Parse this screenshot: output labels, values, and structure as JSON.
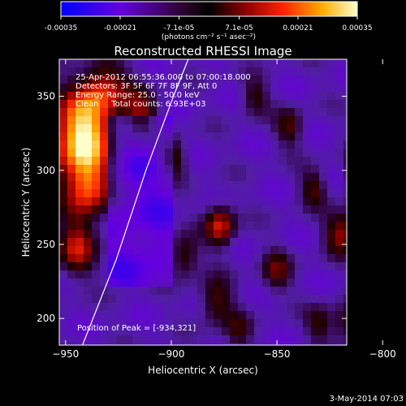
{
  "colorbar": {
    "ticks": [
      "-0.00035",
      "-0.00021",
      "-7.1e-05",
      "7.1e-05",
      "0.00021",
      "0.00035"
    ],
    "tick_values": [
      -0.00035,
      -0.00021,
      -7.1e-05,
      7.1e-05,
      0.00021,
      0.00035
    ],
    "range": [
      -0.00035,
      0.00035
    ],
    "unit_label": "(photons cm⁻² s⁻¹ asec⁻²)",
    "colors": [
      "#0000ff",
      "#5500cc",
      "#330033",
      "#000000",
      "#880000",
      "#ff3300",
      "#ff9900",
      "#ffffcc"
    ]
  },
  "chart_data": {
    "type": "heatmap",
    "title": "Reconstructed RHESSI Image",
    "xlabel": "Heliocentric X (arcsec)",
    "ylabel": "Heliocentric Y (arcsec)",
    "xlim": [
      -953,
      -817
    ],
    "ylim": [
      182,
      375
    ],
    "xticks": [
      -950,
      -900,
      -850,
      -800
    ],
    "yticks": [
      200,
      250,
      300,
      350
    ],
    "annotations": [
      "25-Apr-2012 06:55:36.000 to 07:00:18.000",
      "Detectors: 3F 5F 6F 7F 8F 9F, Att 0",
      "Energy Range: 25.0 - 50.0 keV",
      "Clean     Total counts: 6.93E+03"
    ],
    "peak_label": "Position of Peak = [-934,321]",
    "peak": [
      -934,
      321
    ],
    "limb_curve": [
      [
        -942,
        182
      ],
      [
        -926,
        240
      ],
      [
        -912,
        300
      ],
      [
        -899,
        350
      ],
      [
        -892,
        375
      ]
    ]
  },
  "footer": {
    "date": "3-May-2014 07:03"
  }
}
